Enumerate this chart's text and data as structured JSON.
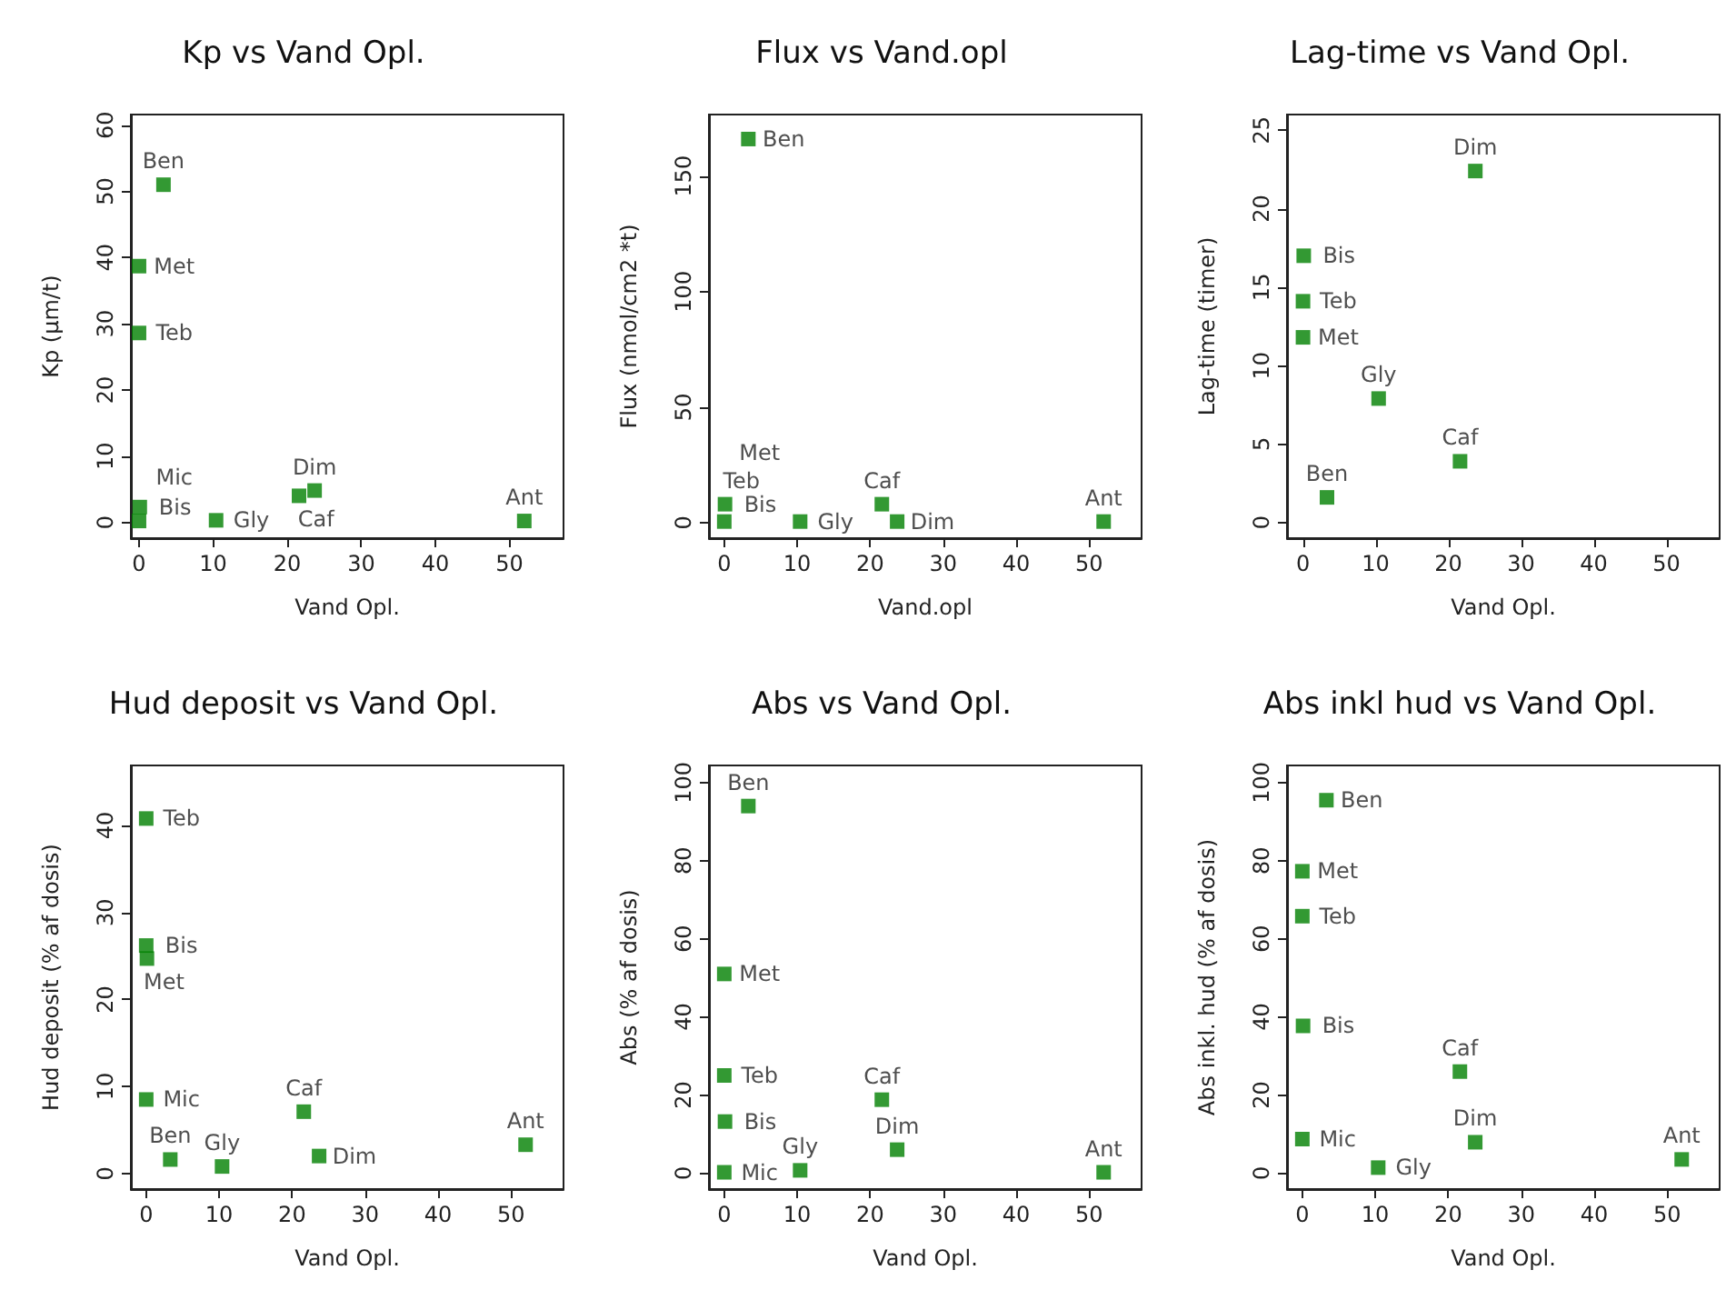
{
  "chart_data": [
    {
      "type": "scatter",
      "title": "Kp vs Vand Opl.",
      "xlabel": "Vand Opl.",
      "ylabel": "Kp (µm/t)",
      "color": "#008000",
      "marker": "square",
      "grid": false,
      "x": [
        3.3,
        0,
        0,
        0.1,
        0,
        10.4,
        21.6,
        23.7,
        52
      ],
      "values": [
        51,
        38.7,
        28.6,
        2.3,
        0.2,
        0.3,
        4,
        4.8,
        0.2
      ],
      "xlim": [
        -1.1,
        57.3
      ],
      "ylim": [
        -2.4,
        61.6
      ],
      "xticks": [
        0,
        10,
        20,
        30,
        40,
        50
      ],
      "yticks": [
        0,
        10,
        20,
        30,
        40,
        50,
        60
      ],
      "annotations": [
        {
          "text": "Ben",
          "x": 3.3,
          "y": 51
        },
        {
          "text": "Met",
          "x": 0,
          "y": 38.7
        },
        {
          "text": "Teb",
          "x": 0,
          "y": 28.6
        },
        {
          "text": "Bis",
          "x": 0.1,
          "y": 2.3
        },
        {
          "text": "Mic",
          "x": 0,
          "y": 0.2
        },
        {
          "text": "Gly",
          "x": 10.4,
          "y": 0.3
        },
        {
          "text": "Caf",
          "x": 21.6,
          "y": 4
        },
        {
          "text": "Dim",
          "x": 23.7,
          "y": 4.8
        },
        {
          "text": "Ant",
          "x": 52,
          "y": 0.2
        }
      ]
    },
    {
      "type": "scatter",
      "title": "Flux vs Vand.opl",
      "xlabel": "Vand.opl",
      "ylabel": "Flux (nmol/cm2 *t)",
      "color": "#008000",
      "marker": "square",
      "grid": false,
      "x": [
        3.3,
        0.1,
        0,
        10.4,
        21.6,
        23.7,
        52
      ],
      "values": [
        166,
        8,
        0.5,
        0.5,
        8,
        0.5,
        0.5
      ],
      "xlim": [
        -2.1,
        57.2
      ],
      "ylim": [
        -6.7,
        176.6
      ],
      "xticks": [
        0,
        10,
        20,
        30,
        40,
        50
      ],
      "yticks": [
        0,
        50,
        100,
        150
      ],
      "annotations": [
        {
          "text": "Ben",
          "x": 3.3,
          "y": 166
        },
        {
          "text": "Bis",
          "x": 0.1,
          "y": 8
        },
        {
          "text": "Teb",
          "x": 0,
          "y": 8
        },
        {
          "text": "Met",
          "x": 0,
          "y": 0.5
        },
        {
          "text": "Gly",
          "x": 10.4,
          "y": 0.5
        },
        {
          "text": "Caf",
          "x": 21.6,
          "y": 8
        },
        {
          "text": "Dim",
          "x": 23.7,
          "y": 0.5
        },
        {
          "text": "Ant",
          "x": 52,
          "y": 0.5
        }
      ]
    },
    {
      "type": "scatter",
      "title": "Lag-time vs Vand Opl.",
      "xlabel": "Vand Opl.",
      "ylabel": "Lag-time (timer)",
      "color": "#008000",
      "marker": "square",
      "grid": false,
      "x": [
        23.7,
        0.1,
        0,
        0,
        10.4,
        21.6,
        3.3
      ],
      "values": [
        22.4,
        17,
        14.1,
        11.8,
        7.9,
        3.9,
        1.6
      ],
      "xlim": [
        -2.2,
        57.3
      ],
      "ylim": [
        -1,
        26
      ],
      "xticks": [
        0,
        10,
        20,
        30,
        40,
        50
      ],
      "yticks": [
        0,
        5,
        10,
        15,
        20,
        25
      ],
      "annotations": [
        {
          "text": "Dim",
          "x": 23.7,
          "y": 22.4
        },
        {
          "text": "Bis",
          "x": 0.1,
          "y": 17
        },
        {
          "text": "Teb",
          "x": 0,
          "y": 14.1
        },
        {
          "text": "Met",
          "x": 0,
          "y": 11.8
        },
        {
          "text": "Gly",
          "x": 10.4,
          "y": 7.9
        },
        {
          "text": "Caf",
          "x": 21.6,
          "y": 3.9
        },
        {
          "text": "Ben",
          "x": 3.3,
          "y": 1.6
        }
      ]
    },
    {
      "type": "scatter",
      "title": "Hud deposit vs Vand Opl.",
      "xlabel": "Vand Opl.",
      "ylabel": "Hud deposit (% af dosis)",
      "color": "#008000",
      "marker": "square",
      "grid": false,
      "x": [
        0,
        0,
        0.1,
        0,
        21.6,
        3.3,
        10.4,
        23.7,
        52
      ],
      "values": [
        40.8,
        26.2,
        24.7,
        8.5,
        7.1,
        1.6,
        0.8,
        2,
        3.3
      ],
      "xlim": [
        -2.1,
        57.2
      ],
      "ylim": [
        -1.8,
        46.9
      ],
      "xticks": [
        0,
        10,
        20,
        30,
        40,
        50
      ],
      "yticks": [
        0,
        10,
        20,
        30,
        40
      ],
      "annotations": [
        {
          "text": "Teb",
          "x": 0,
          "y": 40.8
        },
        {
          "text": "Bis",
          "x": 0,
          "y": 26.2
        },
        {
          "text": "Met",
          "x": 0.1,
          "y": 24.7
        },
        {
          "text": "Mic",
          "x": 0,
          "y": 8.5
        },
        {
          "text": "Caf",
          "x": 21.6,
          "y": 7.1
        },
        {
          "text": "Ben",
          "x": 3.3,
          "y": 1.6
        },
        {
          "text": "Gly",
          "x": 10.4,
          "y": 0.8
        },
        {
          "text": "Dim",
          "x": 23.7,
          "y": 2
        },
        {
          "text": "Ant",
          "x": 52,
          "y": 3.3
        }
      ]
    },
    {
      "type": "scatter",
      "title": "Abs vs Vand Opl.",
      "xlabel": "Vand Opl.",
      "ylabel": "Abs (% af dosis)",
      "color": "#008000",
      "marker": "square",
      "grid": false,
      "x": [
        3.3,
        0,
        0,
        0.1,
        0,
        10.4,
        21.6,
        23.7,
        52
      ],
      "values": [
        94,
        51,
        25,
        13.2,
        0.2,
        0.7,
        18.8,
        6,
        0.2
      ],
      "xlim": [
        -2.1,
        57.2
      ],
      "ylim": [
        -4.1,
        104.4
      ],
      "xticks": [
        0,
        10,
        20,
        30,
        40,
        50
      ],
      "yticks": [
        0,
        20,
        40,
        60,
        80,
        100
      ],
      "annotations": [
        {
          "text": "Ben",
          "x": 3.3,
          "y": 94
        },
        {
          "text": "Met",
          "x": 0,
          "y": 51
        },
        {
          "text": "Teb",
          "x": 0,
          "y": 25
        },
        {
          "text": "Bis",
          "x": 0.1,
          "y": 13.2
        },
        {
          "text": "Mic",
          "x": 0,
          "y": 0.2
        },
        {
          "text": "Gly",
          "x": 10.4,
          "y": 0.7
        },
        {
          "text": "Caf",
          "x": 21.6,
          "y": 18.8
        },
        {
          "text": "Dim",
          "x": 23.7,
          "y": 6
        },
        {
          "text": "Ant",
          "x": 52,
          "y": 0.2
        }
      ]
    },
    {
      "type": "scatter",
      "title": "Abs inkl hud vs Vand Opl.",
      "xlabel": "Vand Opl.",
      "ylabel": "Abs inkl. hud (% af dosis)",
      "color": "#008000",
      "marker": "square",
      "grid": false,
      "x": [
        3.3,
        0,
        0,
        0.1,
        0,
        10.4,
        21.6,
        23.7,
        52
      ],
      "values": [
        95.5,
        77.3,
        65.8,
        37.7,
        8.7,
        1.4,
        26,
        7.9,
        3.5
      ],
      "xlim": [
        -2.1,
        57.2
      ],
      "ylim": [
        -4.1,
        104.4
      ],
      "xticks": [
        0,
        10,
        20,
        30,
        40,
        50
      ],
      "yticks": [
        0,
        20,
        40,
        60,
        80,
        100
      ],
      "annotations": [
        {
          "text": "Ben",
          "x": 3.3,
          "y": 95.5
        },
        {
          "text": "Met",
          "x": 0,
          "y": 77.3
        },
        {
          "text": "Teb",
          "x": 0,
          "y": 65.8
        },
        {
          "text": "Bis",
          "x": 0.1,
          "y": 37.7
        },
        {
          "text": "Mic",
          "x": 0,
          "y": 8.7
        },
        {
          "text": "Gly",
          "x": 10.4,
          "y": 1.4
        },
        {
          "text": "Caf",
          "x": 21.6,
          "y": 26
        },
        {
          "text": "Dim",
          "x": 23.7,
          "y": 7.9
        },
        {
          "text": "Ant",
          "x": 52,
          "y": 3.5
        }
      ]
    }
  ]
}
